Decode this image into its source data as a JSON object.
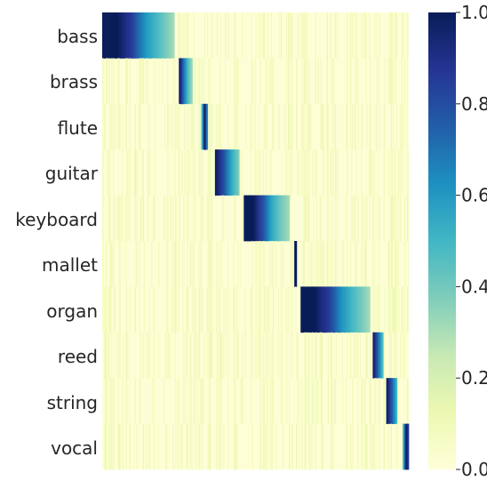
{
  "chart_data": {
    "type": "heatmap",
    "title": "",
    "xlabel": "",
    "ylabel": "",
    "rows": [
      "bass",
      "brass",
      "flute",
      "guitar",
      "keyboard",
      "mallet",
      "organ",
      "reed",
      "string",
      "vocal"
    ],
    "columns_count": 340,
    "x_tick_labels": [],
    "value_range": [
      0,
      1
    ],
    "colormap": "YlGnBu",
    "colormap_stops": [
      "#ffffd9",
      "#edf8b1",
      "#c7e9b4",
      "#7fcdbb",
      "#41b6c4",
      "#1d91c0",
      "#225ea8",
      "#253494",
      "#081d58"
    ],
    "colorbar": {
      "ticks": [
        0.0,
        0.2,
        0.4,
        0.6,
        0.8,
        1.0
      ],
      "tick_labels": [
        "0.0",
        "0.2",
        "0.4",
        "0.6",
        "0.8",
        "1.0"
      ]
    },
    "blocks": [
      {
        "row": "bass",
        "col_start": 0,
        "col_end": 80,
        "profile": [
          1.0,
          1.0,
          0.85,
          0.6,
          0.45,
          0.3
        ]
      },
      {
        "row": "brass",
        "col_start": 85,
        "col_end": 100,
        "profile": [
          1.0,
          0.7,
          0.45,
          0.3
        ]
      },
      {
        "row": "flute",
        "col_start": 109,
        "col_end": 117,
        "profile": [
          0.25,
          1.0,
          0.5
        ]
      },
      {
        "row": "guitar",
        "col_start": 125,
        "col_end": 152,
        "profile": [
          1.0,
          0.8,
          0.55,
          0.35
        ]
      },
      {
        "row": "keyboard",
        "col_start": 157,
        "col_end": 208,
        "profile": [
          1.0,
          1.0,
          0.8,
          0.55,
          0.4,
          0.3
        ]
      },
      {
        "row": "mallet",
        "col_start": 213,
        "col_end": 216,
        "profile": [
          1.0
        ]
      },
      {
        "row": "organ",
        "col_start": 220,
        "col_end": 297,
        "profile": [
          1.0,
          1.0,
          0.85,
          0.6,
          0.45,
          0.3
        ]
      },
      {
        "row": "reed",
        "col_start": 300,
        "col_end": 312,
        "profile": [
          1.0,
          0.7,
          0.4
        ]
      },
      {
        "row": "string",
        "col_start": 315,
        "col_end": 327,
        "profile": [
          1.0,
          0.75,
          0.45
        ]
      },
      {
        "row": "vocal",
        "col_start": 333,
        "col_end": 340,
        "profile": [
          0.4,
          1.0,
          0.8
        ]
      }
    ]
  }
}
